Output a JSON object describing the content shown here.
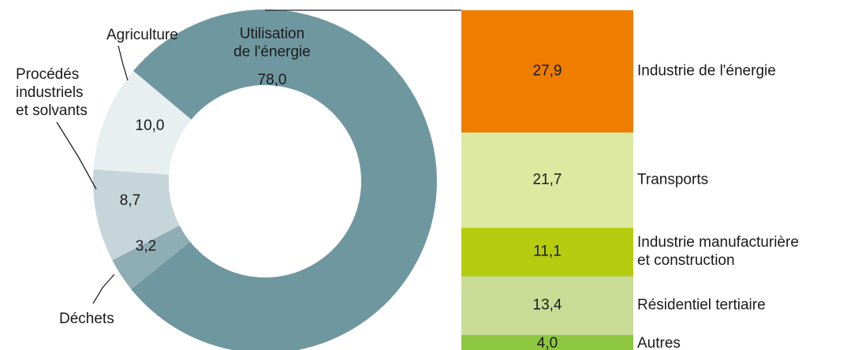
{
  "chart_data": [
    {
      "type": "pie",
      "categories": [
        "Utilisation\nde l'énergie",
        "Déchets",
        "Procédés\nindustriels\net solvants",
        "Agriculture"
      ],
      "values": [
        78.0,
        3.2,
        8.7,
        10.0
      ],
      "value_labels": [
        "78,0",
        "3,2",
        "8,7",
        "10,0"
      ],
      "colors": [
        "#6f97a0",
        "#8fadb4",
        "#c5d5da",
        "#e8eff1"
      ]
    },
    {
      "type": "bar",
      "categories": [
        "Industrie de l'énergie",
        "Transports",
        "Industrie manufacturière\net construction",
        "Résidentiel tertiaire",
        "Autres"
      ],
      "values": [
        27.9,
        21.7,
        11.1,
        13.4,
        4.0
      ],
      "value_labels": [
        "27,9",
        "21,7",
        "11,1",
        "13,4",
        "4,0"
      ],
      "colors": [
        "#ee7d00",
        "#dde8a0",
        "#b5cc10",
        "#c8dc96",
        "#8dc63f"
      ]
    }
  ]
}
